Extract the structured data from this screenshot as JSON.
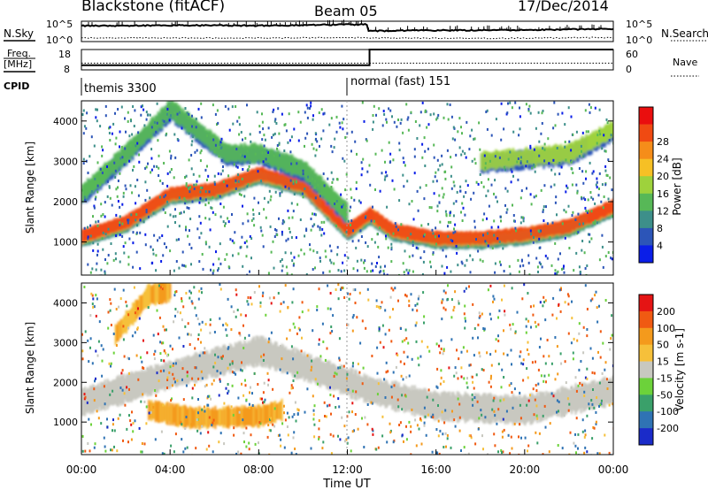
{
  "header": {
    "title": "Blackstone (fitACF)",
    "beam": "Beam 05",
    "date": "17/Dec/2014"
  },
  "sky_panel": {
    "left_label": "N.Sky",
    "right_label": "N.Search",
    "left_ticks": [
      "10^5",
      "10^0"
    ],
    "right_ticks": [
      "10^5",
      "10^0"
    ]
  },
  "freq_panel": {
    "left_label_1": "Freq.",
    "left_label_2": "[MHz]",
    "right_label": "Nave",
    "left_ticks": [
      "18",
      "8"
    ],
    "right_ticks": [
      "60",
      "0"
    ]
  },
  "cpid_panel": {
    "label": "CPID",
    "modes": [
      "themis 3300",
      "normal (fast) 151"
    ]
  },
  "axes": {
    "ylabel": "Slant Range [km]",
    "xlabel": "Time UT",
    "yticks": [
      "1000",
      "2000",
      "3000",
      "4000"
    ],
    "xticks": [
      "00:00",
      "04:00",
      "08:00",
      "12:00",
      "16:00",
      "20:00",
      "00:00"
    ]
  },
  "power_colorbar": {
    "label": "Power [dB]",
    "ticks": [
      "4",
      "8",
      "12",
      "16",
      "20",
      "24",
      "28"
    ],
    "colors": [
      "#0a1ee8",
      "#2c55b8",
      "#3d8f8a",
      "#57b857",
      "#9ed23c",
      "#f6c025",
      "#f58d1a",
      "#f04a12",
      "#ea0e0e"
    ]
  },
  "velocity_colorbar": {
    "label": "Velocity [m s-1]",
    "ticks": [
      "200",
      "100",
      "50",
      "15",
      "-15",
      "-50",
      "-100",
      "-200"
    ],
    "colors": [
      "#1a2bc9",
      "#2f73b4",
      "#3aa06a",
      "#6cd23a",
      "#c8c8c0",
      "#f6c03a",
      "#f49a1c",
      "#f05a12",
      "#e51414"
    ]
  },
  "chart_data": [
    {
      "type": "line",
      "title": "N.Sky / N.Search",
      "x": [
        "00:00",
        "04:00",
        "08:00",
        "12:00",
        "13:00",
        "16:00",
        "20:00",
        "00:00"
      ],
      "series": [
        {
          "name": "N.Sky",
          "values": [
            0.77,
            0.8,
            0.78,
            0.84,
            0.52,
            0.55,
            0.57,
            0.62
          ]
        },
        {
          "name": "N.Search",
          "values": [
            0.18,
            0.18,
            0.17,
            0.2,
            0.18,
            0.16,
            0.17,
            0.2
          ]
        }
      ]
    },
    {
      "type": "line",
      "title": "Freq. / Nave",
      "x": [
        "00:00",
        "04:00",
        "08:00",
        "12:00",
        "13:00",
        "16:00",
        "20:00",
        "00:00"
      ],
      "series": [
        {
          "name": "Freq.",
          "values": [
            10.3,
            10.3,
            10.3,
            10.3,
            18,
            18,
            18,
            18
          ]
        },
        {
          "name": "Nave",
          "values": [
            20,
            20,
            20,
            20,
            20,
            20,
            20,
            20
          ]
        }
      ]
    },
    {
      "type": "heatmap",
      "title": "Power [dB]",
      "xlabel": "Time UT",
      "ylabel": "Slant Range [km]",
      "xlim_hours": [
        0,
        24
      ],
      "ylim_km": [
        180,
        4500
      ],
      "features": [
        {
          "name": "main echo band",
          "t": [
            0.0,
            2.0,
            4.0,
            6.0,
            8.0,
            10.0,
            12.0,
            13.0,
            14.0,
            16.0,
            18.0,
            20.0,
            22.0,
            24.0
          ],
          "range_km": [
            1150,
            1500,
            2200,
            2300,
            2700,
            2400,
            1300,
            1700,
            1300,
            1100,
            1100,
            1200,
            1400,
            1900
          ],
          "peak_db": 28
        },
        {
          "name": "upper band",
          "t": [
            0.0,
            2.0,
            4.0,
            6.5,
            8.0,
            10.0,
            12.0
          ],
          "range_km": [
            2200,
            3200,
            4300,
            3200,
            3200,
            2800,
            1700
          ],
          "peak_db": 12
        },
        {
          "name": "late upper band",
          "t": [
            18.0,
            20.0,
            22.0,
            24.0
          ],
          "range_km": [
            3000,
            3100,
            3200,
            3800
          ],
          "peak_db": 16
        }
      ]
    },
    {
      "type": "heatmap",
      "title": "Velocity [m s-1]",
      "xlabel": "Time UT",
      "ylabel": "Slant Range [km]",
      "xlim_hours": [
        0,
        24
      ],
      "ylim_km": [
        180,
        4500
      ],
      "features": [
        {
          "name": "ground scatter",
          "t": [
            0.0,
            4.0,
            8.0,
            12.0,
            13.0,
            16.0,
            20.0,
            24.0
          ],
          "range_km": [
            1500,
            2200,
            2800,
            2000,
            1800,
            1400,
            1300,
            1800
          ],
          "velocity_ms": 0
        },
        {
          "name": "away flow patch",
          "t": [
            3.0,
            5.0,
            8.0,
            9.0
          ],
          "range_km": [
            1300,
            1100,
            1150,
            1300
          ],
          "velocity_ms": -60
        },
        {
          "name": "early upper echoes",
          "t": [
            1.5,
            3.0,
            4.0
          ],
          "range_km": [
            3200,
            4200,
            4300
          ],
          "velocity_ms": -40
        }
      ]
    }
  ]
}
